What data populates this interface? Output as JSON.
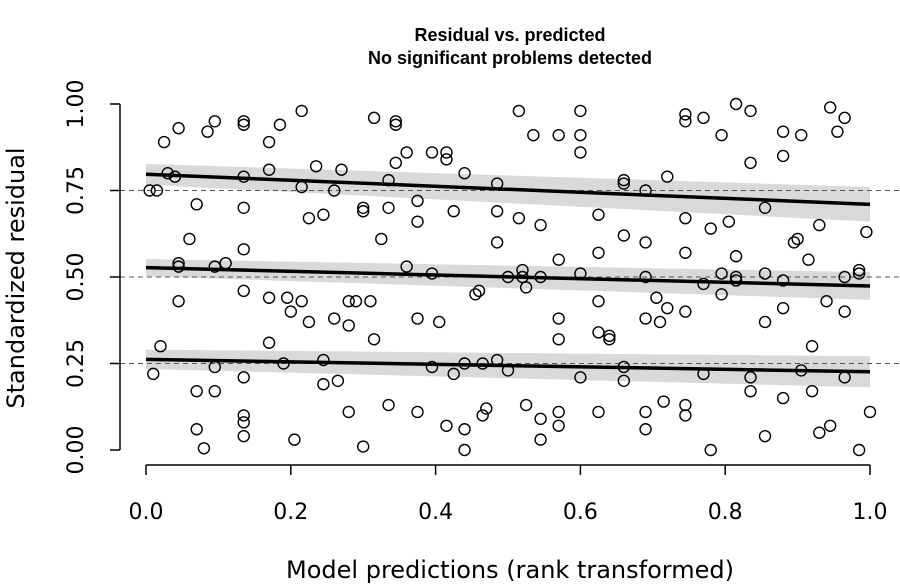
{
  "chart_data": {
    "type": "scatter",
    "title": "Residual vs. predicted",
    "subtitle": "No significant problems detected",
    "xlabel": "Model predictions (rank transformed)",
    "ylabel": "Standardized residual",
    "xlim": [
      0,
      1
    ],
    "ylim": [
      0,
      1
    ],
    "x_ticks": [
      "0.0",
      "0.2",
      "0.4",
      "0.6",
      "0.8",
      "1.0"
    ],
    "y_ticks": [
      "0.00",
      "0.25",
      "0.50",
      "0.75",
      "1.00"
    ],
    "reference_lines": [
      0.25,
      0.5,
      0.75
    ],
    "quantile_fits": [
      {
        "quantile": 0.25,
        "start": 0.262,
        "end": 0.226,
        "band_halfwidth_start": 0.028,
        "band_halfwidth_end": 0.045
      },
      {
        "quantile": 0.5,
        "start": 0.527,
        "end": 0.474,
        "band_halfwidth_start": 0.025,
        "band_halfwidth_end": 0.04
      },
      {
        "quantile": 0.75,
        "start": 0.797,
        "end": 0.71,
        "band_halfwidth_start": 0.03,
        "band_halfwidth_end": 0.05
      }
    ],
    "points": [
      [
        0.005,
        0.75
      ],
      [
        0.01,
        0.22
      ],
      [
        0.015,
        0.75
      ],
      [
        0.02,
        0.3
      ],
      [
        0.025,
        0.89
      ],
      [
        0.03,
        0.8
      ],
      [
        0.04,
        0.79
      ],
      [
        0.045,
        0.93
      ],
      [
        0.045,
        0.54
      ],
      [
        0.045,
        0.53
      ],
      [
        0.045,
        0.43
      ],
      [
        0.06,
        0.61
      ],
      [
        0.07,
        0.71
      ],
      [
        0.07,
        0.17
      ],
      [
        0.07,
        0.06
      ],
      [
        0.08,
        0.005
      ],
      [
        0.085,
        0.92
      ],
      [
        0.095,
        0.95
      ],
      [
        0.095,
        0.53
      ],
      [
        0.095,
        0.24
      ],
      [
        0.095,
        0.17
      ],
      [
        0.11,
        0.54
      ],
      [
        0.135,
        0.95
      ],
      [
        0.135,
        0.94
      ],
      [
        0.135,
        0.79
      ],
      [
        0.135,
        0.7
      ],
      [
        0.135,
        0.58
      ],
      [
        0.135,
        0.46
      ],
      [
        0.135,
        0.21
      ],
      [
        0.135,
        0.1
      ],
      [
        0.135,
        0.08
      ],
      [
        0.135,
        0.04
      ],
      [
        0.17,
        0.89
      ],
      [
        0.17,
        0.81
      ],
      [
        0.17,
        0.44
      ],
      [
        0.17,
        0.31
      ],
      [
        0.185,
        0.94
      ],
      [
        0.19,
        0.25
      ],
      [
        0.195,
        0.44
      ],
      [
        0.2,
        0.4
      ],
      [
        0.205,
        0.03
      ],
      [
        0.215,
        0.98
      ],
      [
        0.215,
        0.76
      ],
      [
        0.215,
        0.43
      ],
      [
        0.225,
        0.67
      ],
      [
        0.225,
        0.37
      ],
      [
        0.235,
        0.82
      ],
      [
        0.245,
        0.68
      ],
      [
        0.245,
        0.26
      ],
      [
        0.245,
        0.19
      ],
      [
        0.26,
        0.75
      ],
      [
        0.26,
        0.38
      ],
      [
        0.265,
        0.2
      ],
      [
        0.27,
        0.81
      ],
      [
        0.28,
        0.43
      ],
      [
        0.28,
        0.36
      ],
      [
        0.28,
        0.11
      ],
      [
        0.29,
        0.43
      ],
      [
        0.3,
        0.7
      ],
      [
        0.3,
        0.69
      ],
      [
        0.3,
        0.01
      ],
      [
        0.31,
        0.43
      ],
      [
        0.315,
        0.96
      ],
      [
        0.315,
        0.32
      ],
      [
        0.325,
        0.61
      ],
      [
        0.335,
        0.78
      ],
      [
        0.335,
        0.7
      ],
      [
        0.335,
        0.13
      ],
      [
        0.345,
        0.95
      ],
      [
        0.345,
        0.94
      ],
      [
        0.345,
        0.83
      ],
      [
        0.36,
        0.86
      ],
      [
        0.36,
        0.53
      ],
      [
        0.375,
        0.72
      ],
      [
        0.375,
        0.66
      ],
      [
        0.375,
        0.38
      ],
      [
        0.375,
        0.11
      ],
      [
        0.395,
        0.86
      ],
      [
        0.395,
        0.51
      ],
      [
        0.395,
        0.24
      ],
      [
        0.405,
        0.37
      ],
      [
        0.415,
        0.86
      ],
      [
        0.415,
        0.84
      ],
      [
        0.415,
        0.07
      ],
      [
        0.425,
        0.69
      ],
      [
        0.425,
        0.22
      ],
      [
        0.44,
        0.8
      ],
      [
        0.44,
        0.25
      ],
      [
        0.44,
        0.06
      ],
      [
        0.44,
        0.0
      ],
      [
        0.455,
        0.45
      ],
      [
        0.46,
        0.46
      ],
      [
        0.465,
        0.25
      ],
      [
        0.465,
        0.1
      ],
      [
        0.47,
        0.12
      ],
      [
        0.485,
        0.77
      ],
      [
        0.485,
        0.69
      ],
      [
        0.485,
        0.6
      ],
      [
        0.485,
        0.26
      ],
      [
        0.5,
        0.5
      ],
      [
        0.5,
        0.23
      ],
      [
        0.515,
        0.98
      ],
      [
        0.515,
        0.67
      ],
      [
        0.52,
        0.52
      ],
      [
        0.52,
        0.5
      ],
      [
        0.525,
        0.47
      ],
      [
        0.525,
        0.13
      ],
      [
        0.535,
        0.91
      ],
      [
        0.545,
        0.65
      ],
      [
        0.545,
        0.5
      ],
      [
        0.545,
        0.09
      ],
      [
        0.545,
        0.03
      ],
      [
        0.57,
        0.91
      ],
      [
        0.57,
        0.55
      ],
      [
        0.57,
        0.38
      ],
      [
        0.57,
        0.32
      ],
      [
        0.57,
        0.11
      ],
      [
        0.57,
        0.07
      ],
      [
        0.6,
        0.98
      ],
      [
        0.6,
        0.91
      ],
      [
        0.6,
        0.86
      ],
      [
        0.6,
        0.51
      ],
      [
        0.6,
        0.21
      ],
      [
        0.625,
        0.68
      ],
      [
        0.625,
        0.57
      ],
      [
        0.625,
        0.43
      ],
      [
        0.625,
        0.34
      ],
      [
        0.625,
        0.11
      ],
      [
        0.64,
        0.33
      ],
      [
        0.64,
        0.32
      ],
      [
        0.66,
        0.77
      ],
      [
        0.66,
        0.78
      ],
      [
        0.66,
        0.62
      ],
      [
        0.66,
        0.24
      ],
      [
        0.66,
        0.2
      ],
      [
        0.69,
        0.75
      ],
      [
        0.69,
        0.6
      ],
      [
        0.69,
        0.5
      ],
      [
        0.69,
        0.38
      ],
      [
        0.69,
        0.11
      ],
      [
        0.69,
        0.06
      ],
      [
        0.705,
        0.44
      ],
      [
        0.71,
        0.37
      ],
      [
        0.715,
        0.14
      ],
      [
        0.72,
        0.79
      ],
      [
        0.72,
        0.41
      ],
      [
        0.745,
        0.97
      ],
      [
        0.745,
        0.95
      ],
      [
        0.745,
        0.67
      ],
      [
        0.745,
        0.57
      ],
      [
        0.745,
        0.4
      ],
      [
        0.745,
        0.13
      ],
      [
        0.745,
        0.1
      ],
      [
        0.77,
        0.96
      ],
      [
        0.77,
        0.48
      ],
      [
        0.77,
        0.22
      ],
      [
        0.78,
        0.0
      ],
      [
        0.78,
        0.64
      ],
      [
        0.795,
        0.91
      ],
      [
        0.795,
        0.51
      ],
      [
        0.795,
        0.45
      ],
      [
        0.805,
        0.66
      ],
      [
        0.815,
        1.0
      ],
      [
        0.815,
        0.56
      ],
      [
        0.815,
        0.5
      ],
      [
        0.815,
        0.49
      ],
      [
        0.835,
        0.98
      ],
      [
        0.835,
        0.83
      ],
      [
        0.835,
        0.21
      ],
      [
        0.835,
        0.17
      ],
      [
        0.855,
        0.7
      ],
      [
        0.855,
        0.51
      ],
      [
        0.855,
        0.37
      ],
      [
        0.855,
        0.04
      ],
      [
        0.88,
        0.92
      ],
      [
        0.88,
        0.85
      ],
      [
        0.88,
        0.49
      ],
      [
        0.88,
        0.41
      ],
      [
        0.88,
        0.15
      ],
      [
        0.895,
        0.6
      ],
      [
        0.9,
        0.61
      ],
      [
        0.905,
        0.91
      ],
      [
        0.905,
        0.23
      ],
      [
        0.915,
        0.55
      ],
      [
        0.92,
        0.3
      ],
      [
        0.92,
        0.17
      ],
      [
        0.93,
        0.65
      ],
      [
        0.93,
        0.05
      ],
      [
        0.94,
        0.43
      ],
      [
        0.945,
        0.99
      ],
      [
        0.945,
        0.07
      ],
      [
        0.955,
        0.92
      ],
      [
        0.965,
        0.96
      ],
      [
        0.965,
        0.5
      ],
      [
        0.965,
        0.4
      ],
      [
        0.965,
        0.21
      ],
      [
        0.985,
        0.52
      ],
      [
        0.985,
        0.51
      ],
      [
        0.985,
        0.0
      ],
      [
        0.995,
        0.63
      ],
      [
        1.0,
        0.11
      ]
    ]
  }
}
